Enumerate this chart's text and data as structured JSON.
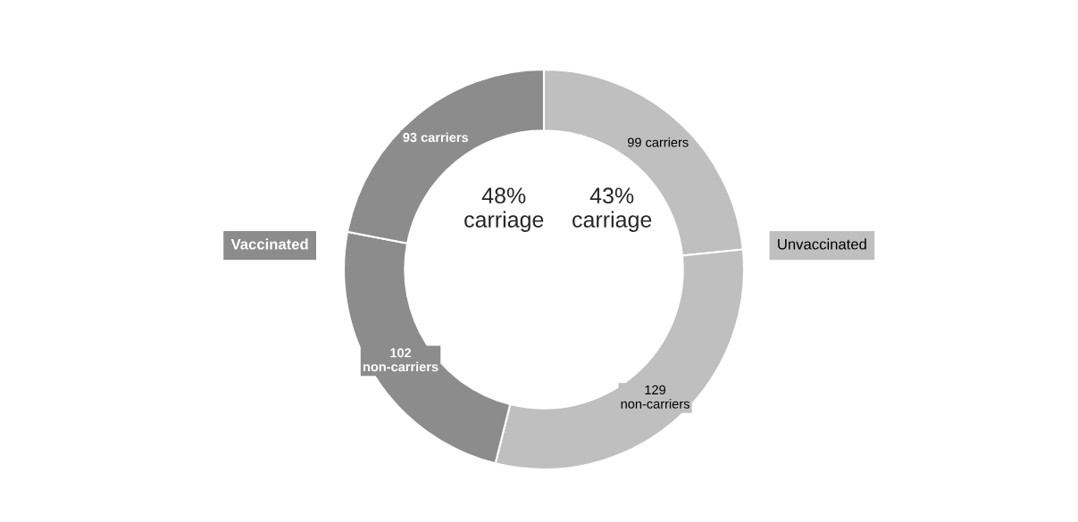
{
  "chart_data": {
    "type": "donut",
    "categories": [
      "99 carriers",
      "129\nnon-carriers",
      "102\nnon-carriers",
      "93 carriers"
    ],
    "values": [
      99,
      129,
      102,
      93
    ],
    "colors": [
      "#bfbfbf",
      "#bfbfbf",
      "#8c8c8c",
      "#8c8c8c"
    ],
    "annotations": [
      "48%\ncarriage",
      "43%\ncarriage",
      "Vaccinated",
      "Unvaccinated"
    ]
  }
}
